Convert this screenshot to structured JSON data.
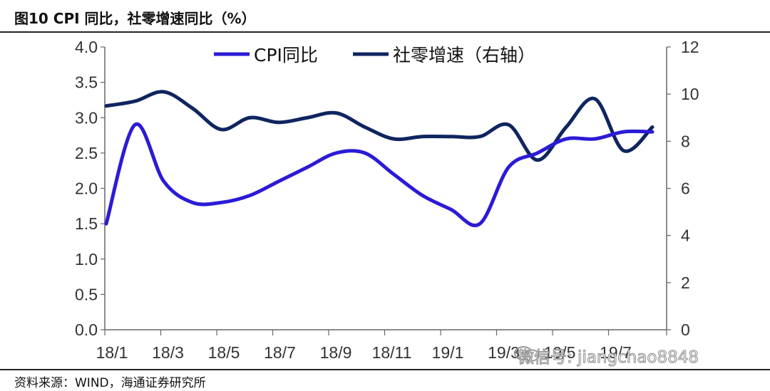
{
  "header": {
    "title": "图10 CPI 同比，社零增速同比（%）"
  },
  "footer": {
    "source": "资料来源：WIND，海通证券研究所"
  },
  "watermark": {
    "text": "微信号: jiangchao8848",
    "icon": "wechat-icon"
  },
  "chart_data": {
    "type": "line",
    "title": "图10 CPI 同比，社零增速同比（%）",
    "x_ticks": [
      "18/1",
      "18/3",
      "18/5",
      "18/7",
      "18/9",
      "18/11",
      "19/1",
      "19/3",
      "19/5",
      "19/7"
    ],
    "x": [
      "18/1",
      "18/2",
      "18/3",
      "18/4",
      "18/5",
      "18/6",
      "18/7",
      "18/8",
      "18/9",
      "18/10",
      "18/11",
      "18/12",
      "19/1",
      "19/2",
      "19/3",
      "19/4",
      "19/5",
      "19/6",
      "19/7",
      "19/8"
    ],
    "y_left": {
      "min": 0,
      "max": 4,
      "step": 0.5,
      "ticks": [
        "0.0",
        "0.5",
        "1.0",
        "1.5",
        "2.0",
        "2.5",
        "3.0",
        "3.5",
        "4.0"
      ]
    },
    "y_right": {
      "min": 0,
      "max": 12,
      "step": 2,
      "ticks": [
        "0",
        "2",
        "4",
        "6",
        "8",
        "10",
        "12"
      ]
    },
    "grid": false,
    "legend_position": "top",
    "series": [
      {
        "name": "CPI同比",
        "axis": "left",
        "color": "#2B1BD6",
        "values": [
          1.5,
          2.9,
          2.1,
          1.8,
          1.8,
          1.9,
          2.1,
          2.3,
          2.5,
          2.5,
          2.2,
          1.9,
          1.7,
          1.5,
          2.3,
          2.5,
          2.7,
          2.7,
          2.8,
          2.8
        ]
      },
      {
        "name": "社零增速（右轴）",
        "axis": "right",
        "color": "#0F2560",
        "values": [
          9.5,
          9.7,
          10.1,
          9.4,
          8.5,
          9.0,
          8.8,
          9.0,
          9.2,
          8.6,
          8.1,
          8.2,
          8.2,
          8.2,
          8.7,
          7.2,
          8.6,
          9.8,
          7.6,
          8.6
        ]
      }
    ]
  }
}
